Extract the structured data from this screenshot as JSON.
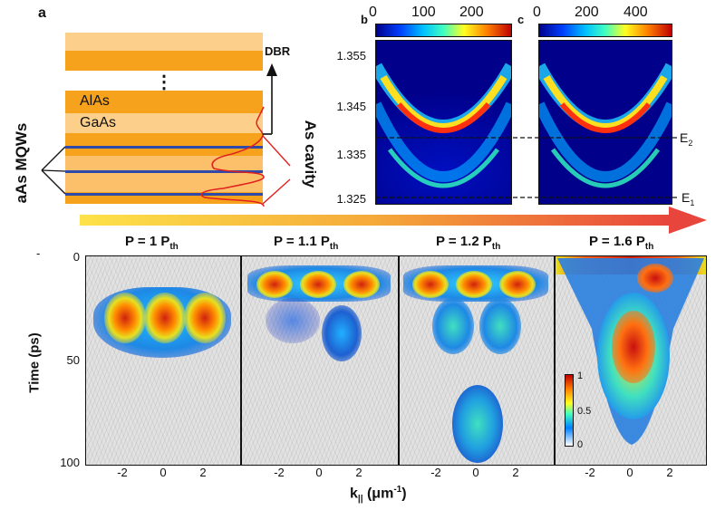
{
  "panel_a": {
    "label": "a",
    "dbr_label": "DBR",
    "ellipsis": "⋮",
    "layer_top_label": "AlAs",
    "layer_mid_label": "GaAs",
    "mqw_label": "aAs MQWs",
    "cavity_label": "As cavity",
    "colors": {
      "orange": "#f7a21c",
      "light_orange": "#fcd08a",
      "well_blue": "#2f4aa8",
      "mode_red": "#e02020"
    }
  },
  "panel_b": {
    "label": "b",
    "colorbar_ticks": [
      "0",
      "100",
      "200"
    ],
    "y_ticks": [
      "1.355",
      "1.345",
      "1.335",
      "1.325"
    ],
    "line_labels": {
      "e2": "E",
      "e2_sub": "2",
      "e1": "E",
      "e1_sub": "1"
    }
  },
  "panel_c": {
    "label": "c",
    "colorbar_ticks": [
      "0",
      "200",
      "400"
    ]
  },
  "power_arrow": {
    "colors": [
      "#fde24a",
      "#e8453c"
    ]
  },
  "time_panels": [
    {
      "title": "P = 1 P",
      "sub": "th"
    },
    {
      "title": "P = 1.1 P",
      "sub": "th"
    },
    {
      "title": "P = 1.2 P",
      "sub": "th"
    },
    {
      "title": "P = 1.6 P",
      "sub": "th"
    }
  ],
  "y_axis": {
    "label": "Time (ps)",
    "ticks": [
      "0",
      "50",
      "100"
    ],
    "corner_mark": "-"
  },
  "x_axis": {
    "label_main": "k",
    "label_sub": "||",
    "label_unit": " (μm",
    "label_exp": "-1",
    "label_close": ")",
    "ticks": [
      "-2",
      "0",
      "2"
    ]
  },
  "colorbar_small": {
    "ticks": [
      "1",
      "0.5",
      "0"
    ]
  }
}
